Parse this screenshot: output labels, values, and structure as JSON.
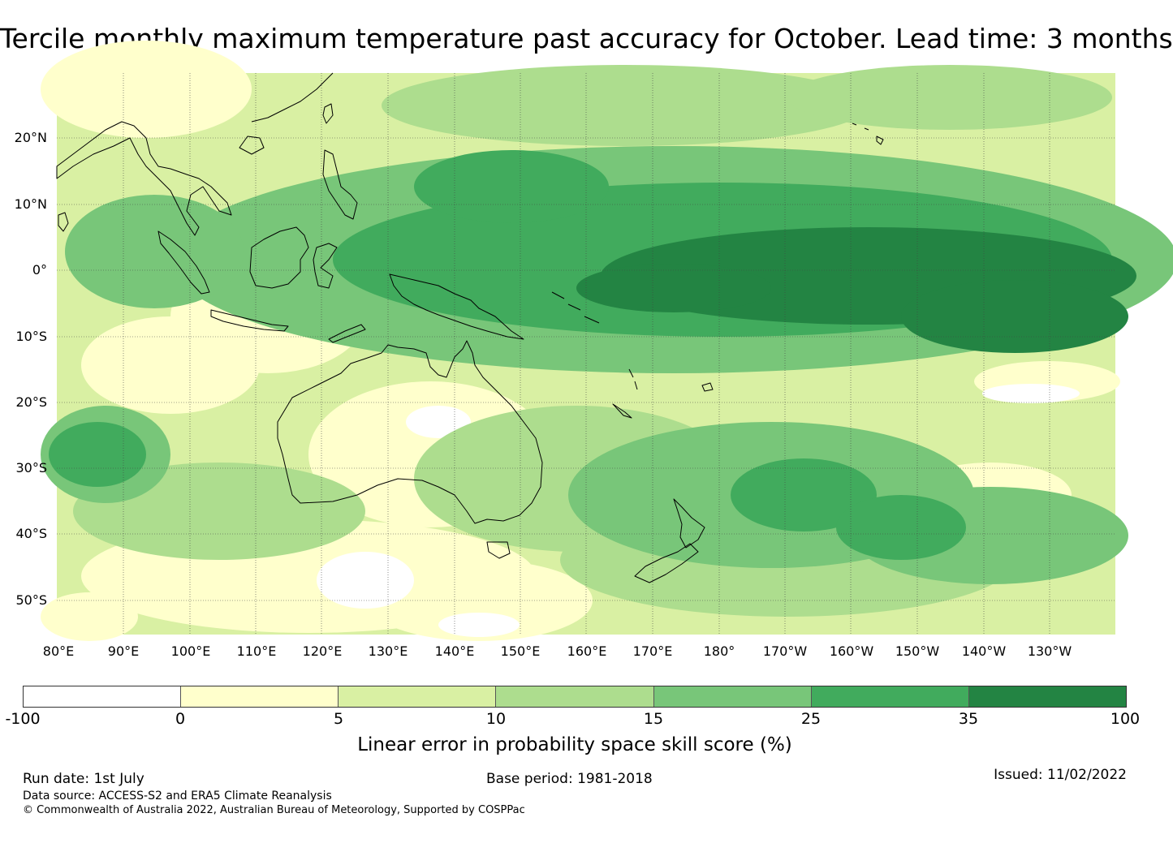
{
  "title": "Tercile monthly maximum temperature past accuracy for October. Lead time: 3 months",
  "lat_labels": [
    "20°N",
    "10°N",
    "0°",
    "10°S",
    "20°S",
    "30°S",
    "40°S",
    "50°S"
  ],
  "lon_labels": [
    "80°E",
    "90°E",
    "100°E",
    "110°E",
    "120°E",
    "130°E",
    "140°E",
    "150°E",
    "160°E",
    "170°E",
    "180°",
    "170°W",
    "160°W",
    "150°W",
    "140°W",
    "130°W"
  ],
  "colorbar": {
    "label": "Linear error in probability space skill score (%)",
    "ticks": [
      "-100",
      "0",
      "5",
      "10",
      "15",
      "25",
      "35",
      "100"
    ],
    "colors": [
      "#ffffff",
      "#ffffcc",
      "#d9f0a3",
      "#addd8e",
      "#78c679",
      "#41ab5d",
      "#238443"
    ]
  },
  "footer": {
    "run_date": "Run date: 1st July",
    "base_period": "Base period: 1981-2018",
    "issued": "Issued: 11/02/2022",
    "data_source": "Data source: ACCESS-S2 and ERA5 Climate Reanalysis",
    "copyright": "© Commonwealth of Australia 2022, Australian Bureau of Meteorology, Supported by COSPPac"
  }
}
